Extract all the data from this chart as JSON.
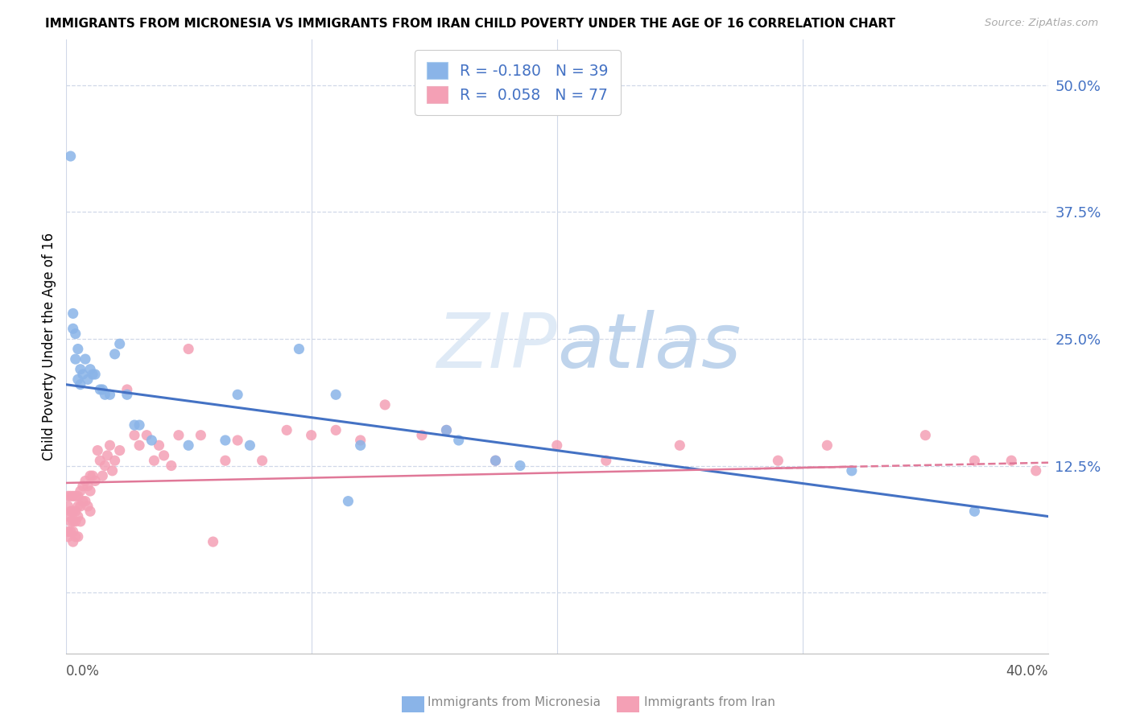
{
  "title": "IMMIGRANTS FROM MICRONESIA VS IMMIGRANTS FROM IRAN CHILD POVERTY UNDER THE AGE OF 16 CORRELATION CHART",
  "source": "Source: ZipAtlas.com",
  "ylabel": "Child Poverty Under the Age of 16",
  "yticks": [
    0.0,
    0.125,
    0.25,
    0.375,
    0.5
  ],
  "ytick_labels": [
    "",
    "12.5%",
    "25.0%",
    "37.5%",
    "50.0%"
  ],
  "xlim": [
    0.0,
    0.4
  ],
  "ylim": [
    -0.06,
    0.545
  ],
  "micronesia_color": "#8ab4e8",
  "iran_color": "#f4a0b5",
  "micronesia_line_color": "#4472c4",
  "iran_line_color": "#e07898",
  "watermark_color": "#d8e8f5",
  "legend_label_micronesia": "R = -0.180   N = 39",
  "legend_label_iran": "R =  0.058   N = 77",
  "legend_text_color": "#4472c4",
  "grid_color": "#d0d8e8",
  "bottom_label_color": "#888888",
  "micronesia_x": [
    0.002,
    0.003,
    0.003,
    0.004,
    0.004,
    0.005,
    0.005,
    0.006,
    0.006,
    0.007,
    0.008,
    0.009,
    0.01,
    0.011,
    0.012,
    0.014,
    0.015,
    0.016,
    0.018,
    0.02,
    0.022,
    0.025,
    0.028,
    0.03,
    0.035,
    0.05,
    0.065,
    0.07,
    0.075,
    0.095,
    0.11,
    0.115,
    0.12,
    0.155,
    0.16,
    0.175,
    0.185,
    0.32,
    0.37
  ],
  "micronesia_y": [
    0.43,
    0.275,
    0.26,
    0.255,
    0.23,
    0.24,
    0.21,
    0.22,
    0.205,
    0.215,
    0.23,
    0.21,
    0.22,
    0.215,
    0.215,
    0.2,
    0.2,
    0.195,
    0.195,
    0.235,
    0.245,
    0.195,
    0.165,
    0.165,
    0.15,
    0.145,
    0.15,
    0.195,
    0.145,
    0.24,
    0.195,
    0.09,
    0.145,
    0.16,
    0.15,
    0.13,
    0.125,
    0.12,
    0.08
  ],
  "iran_x": [
    0.001,
    0.001,
    0.001,
    0.001,
    0.001,
    0.002,
    0.002,
    0.002,
    0.002,
    0.003,
    0.003,
    0.003,
    0.003,
    0.003,
    0.004,
    0.004,
    0.004,
    0.004,
    0.005,
    0.005,
    0.005,
    0.005,
    0.006,
    0.006,
    0.006,
    0.007,
    0.007,
    0.008,
    0.008,
    0.009,
    0.009,
    0.01,
    0.01,
    0.01,
    0.011,
    0.012,
    0.013,
    0.014,
    0.015,
    0.016,
    0.017,
    0.018,
    0.019,
    0.02,
    0.022,
    0.025,
    0.028,
    0.03,
    0.033,
    0.036,
    0.038,
    0.04,
    0.043,
    0.046,
    0.05,
    0.055,
    0.06,
    0.065,
    0.07,
    0.08,
    0.09,
    0.1,
    0.11,
    0.12,
    0.13,
    0.145,
    0.155,
    0.175,
    0.2,
    0.22,
    0.25,
    0.29,
    0.31,
    0.35,
    0.37,
    0.385,
    0.395
  ],
  "iran_y": [
    0.095,
    0.085,
    0.075,
    0.06,
    0.055,
    0.095,
    0.08,
    0.07,
    0.06,
    0.095,
    0.08,
    0.07,
    0.06,
    0.05,
    0.095,
    0.08,
    0.07,
    0.055,
    0.095,
    0.085,
    0.075,
    0.055,
    0.1,
    0.085,
    0.07,
    0.105,
    0.09,
    0.11,
    0.09,
    0.105,
    0.085,
    0.115,
    0.1,
    0.08,
    0.115,
    0.11,
    0.14,
    0.13,
    0.115,
    0.125,
    0.135,
    0.145,
    0.12,
    0.13,
    0.14,
    0.2,
    0.155,
    0.145,
    0.155,
    0.13,
    0.145,
    0.135,
    0.125,
    0.155,
    0.24,
    0.155,
    0.05,
    0.13,
    0.15,
    0.13,
    0.16,
    0.155,
    0.16,
    0.15,
    0.185,
    0.155,
    0.16,
    0.13,
    0.145,
    0.13,
    0.145,
    0.13,
    0.145,
    0.155,
    0.13,
    0.13,
    0.12
  ],
  "mic_trend_x0": 0.0,
  "mic_trend_y0": 0.205,
  "mic_trend_x1": 0.4,
  "mic_trend_y1": 0.075,
  "iran_trend_x0": 0.0,
  "iran_trend_y0": 0.108,
  "iran_trend_x1": 0.4,
  "iran_trend_y1": 0.128
}
